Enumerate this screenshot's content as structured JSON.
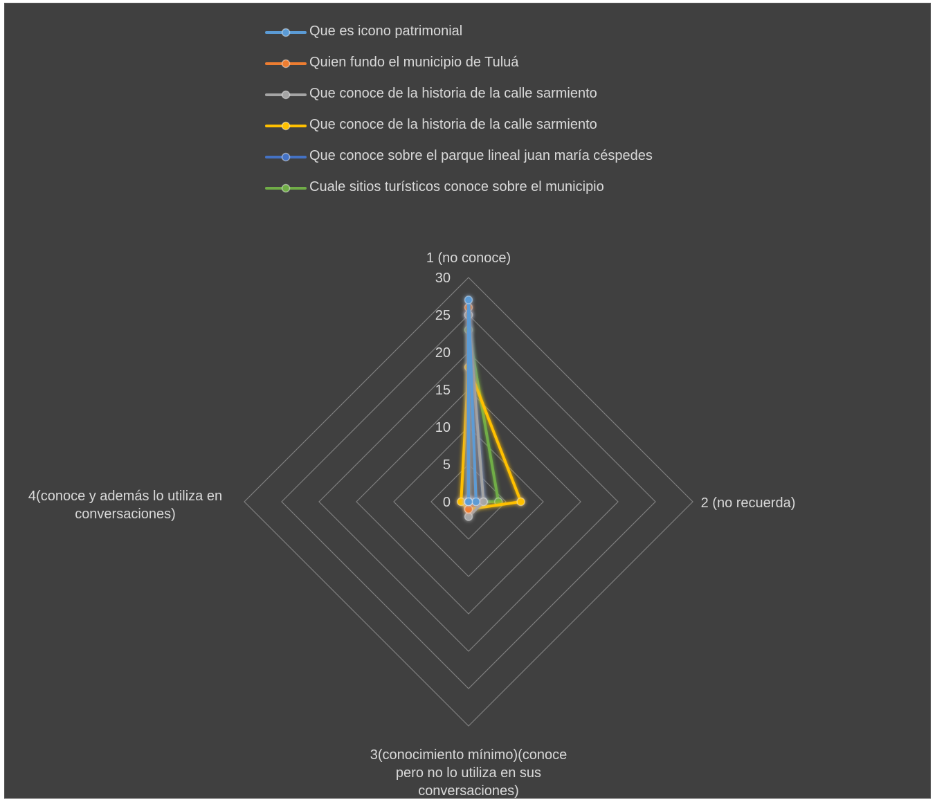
{
  "chart_data": {
    "type": "radar",
    "axes": [
      "1 (no conoce)",
      "2 (no recuerda)",
      "3(conocimiento mínimo)(conoce pero no lo utiliza en sus conversaciones)",
      "4(conoce y además lo utiliza en conversaciones)"
    ],
    "axis_label_lines": [
      [
        "1 (no conoce)"
      ],
      [
        "2 (no recuerda)"
      ],
      [
        "3(conocimiento mínimo)(conoce",
        "pero no lo utiliza en sus",
        "conversaciones)"
      ],
      [
        "4(conoce y además lo utiliza en",
        "conversaciones)"
      ]
    ],
    "rlim": [
      0,
      30
    ],
    "ticks": [
      0,
      5,
      10,
      15,
      20,
      25,
      30
    ],
    "legend_position": "top",
    "grid": true,
    "series": [
      {
        "name": "Que es icono patrimonial",
        "color": "#5b9bd5",
        "values": [
          27,
          1,
          0,
          0
        ]
      },
      {
        "name": "Quien fundo el municipio de Tuluá",
        "color": "#ed7d31",
        "values": [
          26,
          1,
          1,
          0
        ]
      },
      {
        "name": "Que conoce de la historia de la calle sarmiento",
        "color": "#a5a5a5",
        "values": [
          25,
          2,
          2,
          0
        ]
      },
      {
        "name": "Que conoce de la historia de la calle sarmiento",
        "color": "#ffc000",
        "values": [
          18,
          7,
          1,
          1
        ]
      },
      {
        "name": "Que conoce sobre el parque lineal juan maría céspedes",
        "color": "#4472c4",
        "values": [
          25,
          2,
          0,
          0
        ]
      },
      {
        "name": "Cuale sitios turísticos conoce sobre el municipio",
        "color": "#70ad47",
        "values": [
          23,
          4,
          0,
          0
        ]
      }
    ]
  }
}
